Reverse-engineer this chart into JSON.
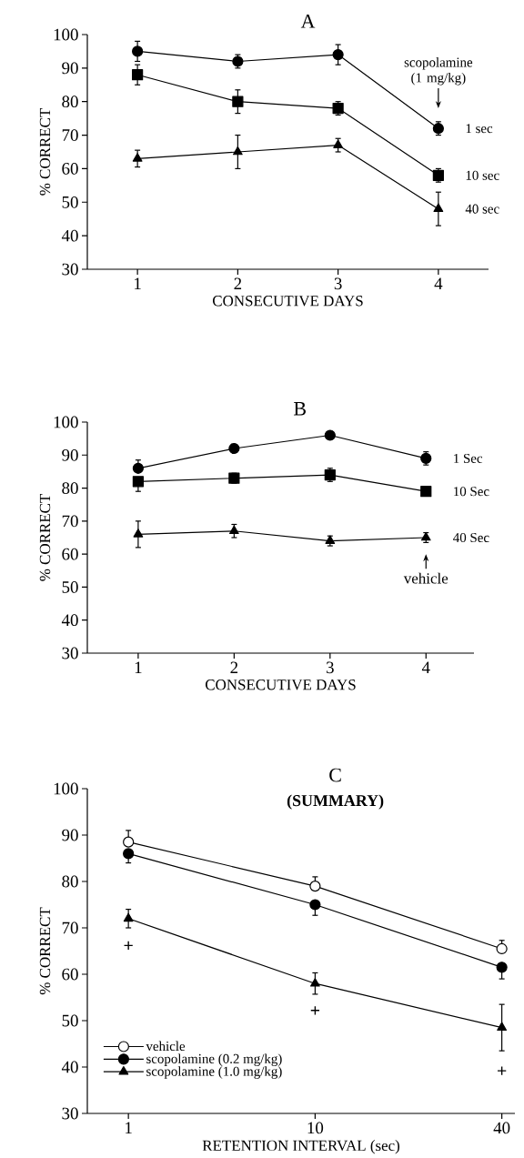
{
  "chart_data": [
    {
      "type": "line",
      "title": "A",
      "xlabel": "CONSECUTIVE DAYS",
      "ylabel": "% CORRECT",
      "categories": [
        "1",
        "2",
        "3",
        "4"
      ],
      "ylim": [
        30,
        100
      ],
      "yticks": [
        30,
        40,
        50,
        60,
        70,
        80,
        90,
        100
      ],
      "series": [
        {
          "name": "1 sec",
          "color": "#000000",
          "marker": "circle",
          "values": [
            95,
            92,
            94,
            72
          ],
          "errors": [
            3,
            2,
            3,
            2
          ]
        },
        {
          "name": "10 sec",
          "color": "#000000",
          "marker": "square",
          "values": [
            88,
            80,
            78,
            58
          ],
          "errors": [
            3,
            3.5,
            2,
            2
          ]
        },
        {
          "name": "40 sec",
          "color": "#000000",
          "marker": "triangle",
          "values": [
            63,
            65,
            67,
            48
          ],
          "errors": [
            2.5,
            5,
            2,
            5
          ]
        }
      ],
      "annotations": [
        "scopolamine (1 mg/kg)"
      ]
    },
    {
      "type": "line",
      "title": "B",
      "xlabel": "CONSECUTIVE DAYS",
      "ylabel": "% CORRECT",
      "categories": [
        "1",
        "2",
        "3",
        "4"
      ],
      "ylim": [
        30,
        100
      ],
      "yticks": [
        30,
        40,
        50,
        60,
        70,
        80,
        90,
        100
      ],
      "series": [
        {
          "name": "1 Sec",
          "color": "#000000",
          "marker": "circle",
          "values": [
            86,
            92,
            96,
            89
          ],
          "errors": [
            [
              86,
              88.5
            ],
            1,
            1,
            2
          ]
        },
        {
          "name": "10 Sec",
          "color": "#000000",
          "marker": "square",
          "values": [
            82,
            83,
            84,
            79
          ],
          "errors": [
            [
              79,
              82
            ],
            1.5,
            2,
            1
          ]
        },
        {
          "name": "40 Sec",
          "color": "#000000",
          "marker": "triangle",
          "values": [
            66,
            67,
            64,
            65
          ],
          "errors": [
            4,
            2,
            1.5,
            1.5
          ]
        }
      ],
      "annotations": [
        "vehicle"
      ]
    },
    {
      "type": "line",
      "title": "C",
      "subtitle": "(SUMMARY)",
      "xlabel": "RETENTION INTERVAL (sec)",
      "ylabel": "% CORRECT",
      "categories": [
        "1",
        "10",
        "40"
      ],
      "ylim": [
        30,
        100
      ],
      "yticks": [
        30,
        40,
        50,
        60,
        70,
        80,
        90,
        100
      ],
      "legend": "bottom left",
      "series": [
        {
          "name": "vehicle",
          "color": "#000000",
          "marker": "circle",
          "values": [
            88.5,
            79,
            65.5
          ],
          "errors": [
            [
              88.5,
              91
            ],
            [
              79,
              81
            ],
            [
              65.5,
              67.3
            ]
          ]
        },
        {
          "name": "scopolamine (0.2 mg/kg)",
          "color": "#000000",
          "marker": "circle",
          "values": [
            86,
            75,
            61.5
          ],
          "errors": [
            [
              84,
              86
            ],
            [
              72.7,
              75
            ],
            [
              59,
              61.5
            ]
          ]
        },
        {
          "name": "scopolamine (1.0 mg/kg)",
          "color": "#000000",
          "marker": "triangle",
          "values": [
            72,
            58,
            48.5
          ],
          "errors": [
            2,
            2.3,
            5
          ]
        }
      ],
      "annotations": [
        "+",
        "+",
        "+"
      ]
    }
  ]
}
